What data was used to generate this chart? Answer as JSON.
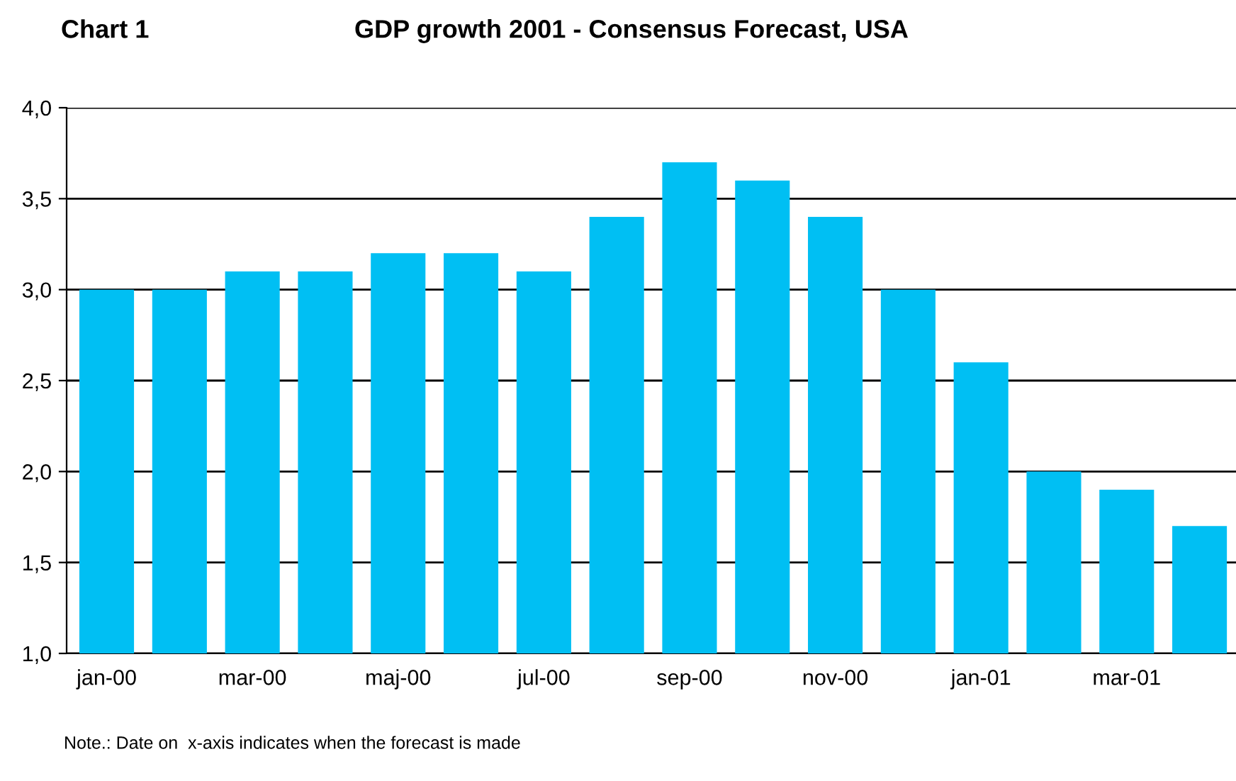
{
  "chart_data": {
    "type": "bar",
    "title": "GDP growth 2001 - Consensus Forecast, USA",
    "categories": [
      "jan-00",
      null,
      "mar-00",
      null,
      "maj-00",
      null,
      "jul-00",
      null,
      "sep-00",
      null,
      "nov-00",
      null,
      "jan-01",
      null,
      "mar-01",
      null
    ],
    "values": [
      3.0,
      3.0,
      3.1,
      3.1,
      3.2,
      3.2,
      3.1,
      3.4,
      3.7,
      3.6,
      3.4,
      3.0,
      2.6,
      2.0,
      1.9,
      1.7
    ],
    "color": "#00bff3",
    "ylim": [
      1,
      4
    ],
    "yticks": [
      {
        "value": 1,
        "label": "1,0"
      },
      {
        "value": 1.5,
        "label": "1,5"
      },
      {
        "value": 2,
        "label": "2,0"
      },
      {
        "value": 2.5,
        "label": "2,5"
      },
      {
        "value": 3,
        "label": "3,0"
      },
      {
        "value": 3.5,
        "label": "3,5"
      },
      {
        "value": 4,
        "label": "4,0"
      }
    ],
    "grid": "y",
    "annotations": [
      "Chart 1",
      "Note.: Date on  x-axis indicates when the forecast is made"
    ]
  }
}
